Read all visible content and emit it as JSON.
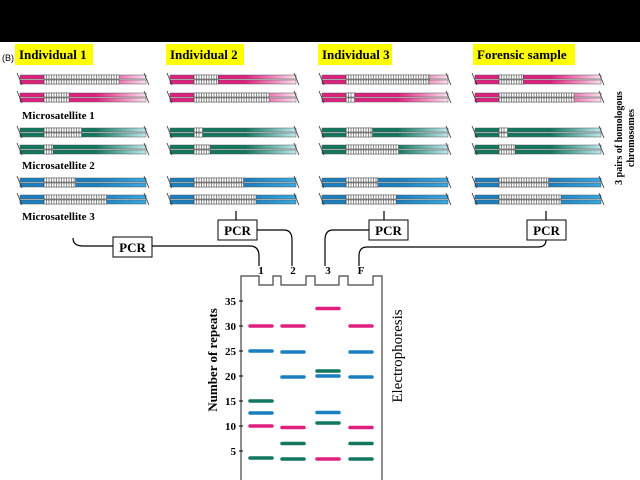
{
  "panel_label": "(B)",
  "individuals": [
    {
      "label": "Individual 1",
      "alleles": [
        [
          30,
          10
        ],
        [
          15,
          3.6
        ],
        [
          12.6,
          25
        ]
      ]
    },
    {
      "label": "Individual 2",
      "alleles": [
        [
          9.7,
          30
        ],
        [
          3.4,
          6.5
        ],
        [
          19.8,
          24.8
        ]
      ]
    },
    {
      "label": "Individual 3",
      "alleles": [
        [
          33.5,
          3.4
        ],
        [
          10.6,
          21
        ],
        [
          12.7,
          20
        ]
      ]
    },
    {
      "label": "Forensic sample",
      "alleles": [
        [
          9.7,
          30
        ],
        [
          3.4,
          6.5
        ],
        [
          19.8,
          24.8
        ]
      ]
    }
  ],
  "microsatellite_labels": [
    "Microsatellite 1",
    "Microsatellite 2",
    "Microsatellite 3"
  ],
  "side_label_line1": "3 pairs of homologous",
  "side_label_line2": "chromosomes",
  "pcr_label": "PCR",
  "colors": {
    "microsatellite_1": "#e0207f",
    "microsatellite_2": "#11775e",
    "microsatellite_3": "#1a7fc0",
    "title_bg": "#ffff00"
  },
  "gel": {
    "lane_labels": [
      "1",
      "2",
      "3",
      "F"
    ],
    "y_axis_label": "Number of repeats",
    "y_ticks": [
      5,
      10,
      15,
      20,
      25,
      30,
      35
    ],
    "side_label": "Electrophoresis",
    "lanes": [
      [
        {
          "ms": 1,
          "repeats": 30
        },
        {
          "ms": 3,
          "repeats": 25
        },
        {
          "ms": 2,
          "repeats": 15
        },
        {
          "ms": 3,
          "repeats": 12.6
        },
        {
          "ms": 1,
          "repeats": 10
        },
        {
          "ms": 2,
          "repeats": 3.6
        }
      ],
      [
        {
          "ms": 1,
          "repeats": 30
        },
        {
          "ms": 3,
          "repeats": 24.8
        },
        {
          "ms": 3,
          "repeats": 19.8
        },
        {
          "ms": 1,
          "repeats": 9.7
        },
        {
          "ms": 2,
          "repeats": 6.5
        },
        {
          "ms": 2,
          "repeats": 3.4
        }
      ],
      [
        {
          "ms": 1,
          "repeats": 33.5
        },
        {
          "ms": 2,
          "repeats": 21
        },
        {
          "ms": 3,
          "repeats": 20
        },
        {
          "ms": 3,
          "repeats": 12.7
        },
        {
          "ms": 2,
          "repeats": 10.6
        },
        {
          "ms": 1,
          "repeats": 3.4
        }
      ],
      [
        {
          "ms": 1,
          "repeats": 30
        },
        {
          "ms": 3,
          "repeats": 24.8
        },
        {
          "ms": 3,
          "repeats": 19.8
        },
        {
          "ms": 1,
          "repeats": 9.7
        },
        {
          "ms": 2,
          "repeats": 6.5
        },
        {
          "ms": 2,
          "repeats": 3.4
        }
      ]
    ]
  }
}
